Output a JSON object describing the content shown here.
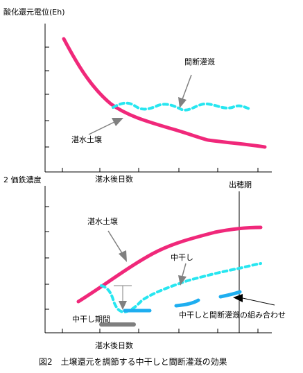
{
  "top_chart": {
    "ylabel": "酸化還元電位(Eh)",
    "xlabel": "湛水後日数",
    "label_flooded": "湛水土壌",
    "label_intermittent": "間断灌漑"
  },
  "bottom_chart": {
    "ylabel": "2 価鉄濃度",
    "xlabel": "湛水後日数",
    "label_heading": "出穂期",
    "label_flooded": "湛水土壌",
    "label_midseason": "中干し",
    "label_midseason_period": "中干し期間",
    "label_combined": "中干しと間断灌漑の組み合わせ"
  },
  "caption": "図2　土壌還元を調節する中干しと間断灌漑の効果",
  "colors": {
    "flooded": "#f0287a",
    "intermittent": "#27e6f0",
    "combined": "#1eaef0",
    "period_bar": "#7f7f7f",
    "axis": "#000000"
  }
}
